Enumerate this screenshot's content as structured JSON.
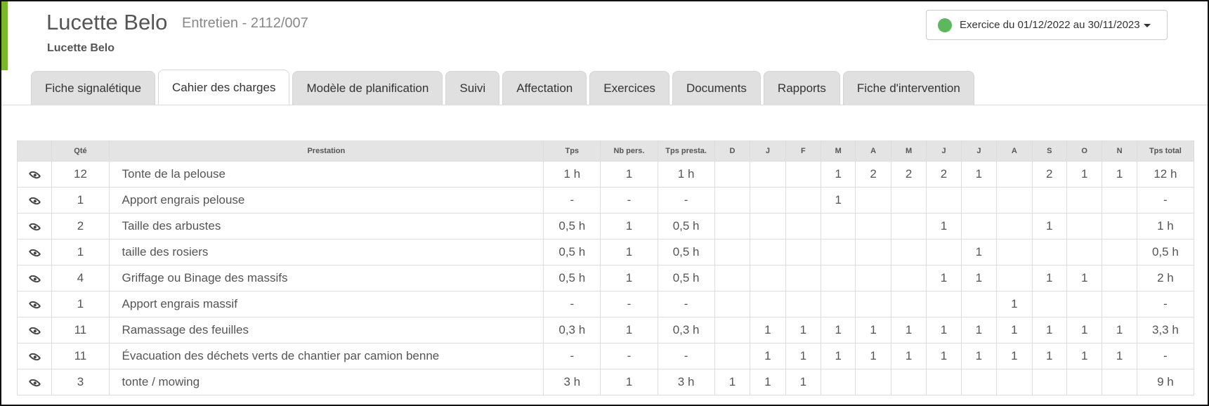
{
  "header": {
    "title": "Lucette Belo",
    "subtitle": "Entretien - 2112/007",
    "person": "Lucette Belo",
    "exercise_label": "Exercice du 01/12/2022 au 30/11/2023",
    "status_color": "#5cb85c",
    "accent_color": "#7ab829"
  },
  "tabs": [
    {
      "label": "Fiche signalétique",
      "active": false
    },
    {
      "label": "Cahier des charges",
      "active": true
    },
    {
      "label": "Modèle de planification",
      "active": false
    },
    {
      "label": "Suivi",
      "active": false
    },
    {
      "label": "Affectation",
      "active": false
    },
    {
      "label": "Exercices",
      "active": false
    },
    {
      "label": "Documents",
      "active": false
    },
    {
      "label": "Rapports",
      "active": false
    },
    {
      "label": "Fiche d'intervention",
      "active": false
    }
  ],
  "table": {
    "columns": [
      "",
      "Qté",
      "Prestation",
      "Tps",
      "Nb pers.",
      "Tps presta.",
      "D",
      "J",
      "F",
      "M",
      "A",
      "M",
      "J",
      "J",
      "A",
      "S",
      "O",
      "N",
      "Tps total"
    ],
    "rows": [
      {
        "qte": "12",
        "prestation": "Tonte de la pelouse",
        "tps": "1 h",
        "nb_pers": "1",
        "tps_presta": "1 h",
        "months": [
          "",
          "",
          "",
          "1",
          "2",
          "2",
          "2",
          "1",
          "",
          "2",
          "1",
          "1"
        ],
        "tps_total": "12 h"
      },
      {
        "qte": "1",
        "prestation": "Apport engrais pelouse",
        "tps": "-",
        "nb_pers": "-",
        "tps_presta": "-",
        "months": [
          "",
          "",
          "",
          "1",
          "",
          "",
          "",
          "",
          "",
          "",
          "",
          ""
        ],
        "tps_total": "-"
      },
      {
        "qte": "2",
        "prestation": "Taille des arbustes",
        "tps": "0,5 h",
        "nb_pers": "1",
        "tps_presta": "0,5 h",
        "months": [
          "",
          "",
          "",
          "",
          "",
          "",
          "1",
          "",
          "",
          "1",
          "",
          ""
        ],
        "tps_total": "1 h"
      },
      {
        "qte": "1",
        "prestation": "taille des rosiers",
        "tps": "0,5 h",
        "nb_pers": "1",
        "tps_presta": "0,5 h",
        "months": [
          "",
          "",
          "",
          "",
          "",
          "",
          "",
          "1",
          "",
          "",
          "",
          ""
        ],
        "tps_total": "0,5 h"
      },
      {
        "qte": "4",
        "prestation": "Griffage ou Binage des massifs",
        "tps": "0,5 h",
        "nb_pers": "1",
        "tps_presta": "0,5 h",
        "months": [
          "",
          "",
          "",
          "",
          "",
          "",
          "1",
          "1",
          "",
          "1",
          "1",
          ""
        ],
        "tps_total": "2 h"
      },
      {
        "qte": "1",
        "prestation": "Apport engrais massif",
        "tps": "-",
        "nb_pers": "-",
        "tps_presta": "-",
        "months": [
          "",
          "",
          "",
          "",
          "",
          "",
          "",
          "",
          "1",
          "",
          "",
          ""
        ],
        "tps_total": "-"
      },
      {
        "qte": "11",
        "prestation": "Ramassage des feuilles",
        "tps": "0,3 h",
        "nb_pers": "1",
        "tps_presta": "0,3 h",
        "months": [
          "",
          "1",
          "1",
          "1",
          "1",
          "1",
          "1",
          "1",
          "1",
          "1",
          "1",
          "1"
        ],
        "tps_total": "3,3 h"
      },
      {
        "qte": "11",
        "prestation": "Évacuation des déchets verts de chantier par camion benne",
        "tps": "-",
        "nb_pers": "-",
        "tps_presta": "-",
        "months": [
          "",
          "1",
          "1",
          "1",
          "1",
          "1",
          "1",
          "1",
          "1",
          "1",
          "1",
          "1"
        ],
        "tps_total": "-"
      },
      {
        "qte": "3",
        "prestation": "tonte / mowing",
        "tps": "3 h",
        "nb_pers": "1",
        "tps_presta": "3 h",
        "months": [
          "1",
          "1",
          "1",
          "",
          "",
          "",
          "",
          "",
          "",
          "",
          "",
          ""
        ],
        "tps_total": "9 h"
      }
    ]
  }
}
